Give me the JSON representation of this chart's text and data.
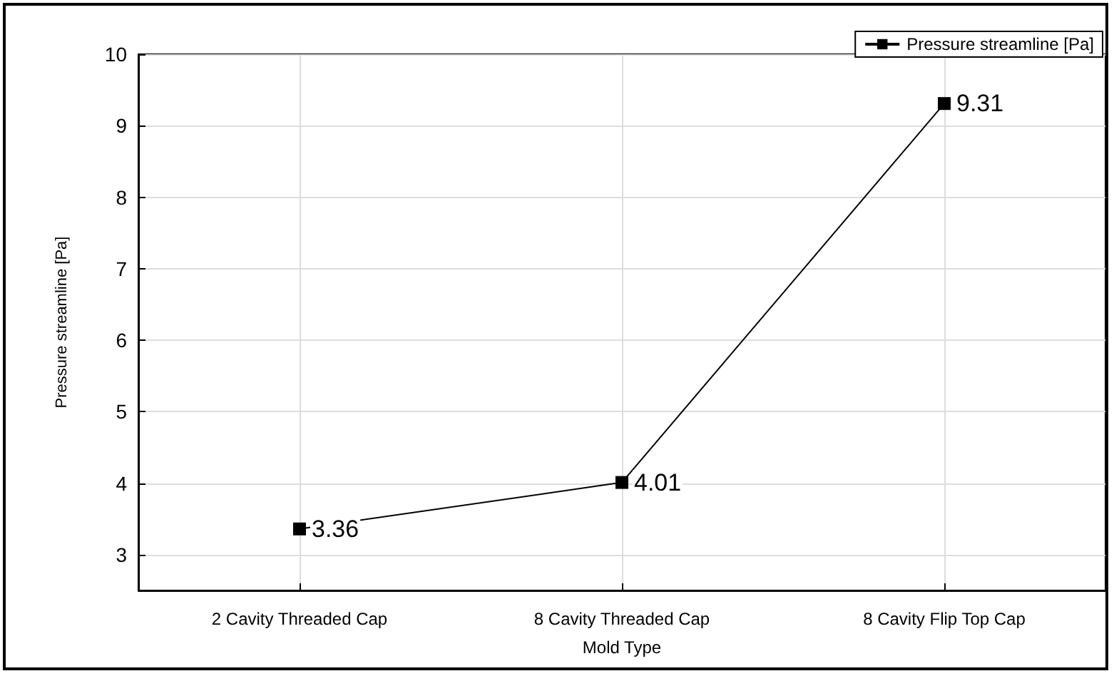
{
  "chart_data": {
    "type": "line",
    "xlabel": "Mold Type",
    "ylabel": "Pressure streamline [Pa]",
    "categories": [
      "2 Cavity Threaded Cap",
      "8 Cavity Threaded Cap",
      "8 Cavity Flip Top Cap"
    ],
    "series": [
      {
        "name": "Pressure streamline [Pa]",
        "color": "#000000",
        "values": [
          3.36,
          4.01,
          9.31
        ]
      }
    ],
    "ylim": [
      2.5,
      10
    ],
    "yticks": [
      3,
      4,
      5,
      6,
      7,
      8,
      9,
      10
    ],
    "grid": true,
    "legend": "top right",
    "marker": "square",
    "line_style": "solid",
    "data_labels": true
  }
}
